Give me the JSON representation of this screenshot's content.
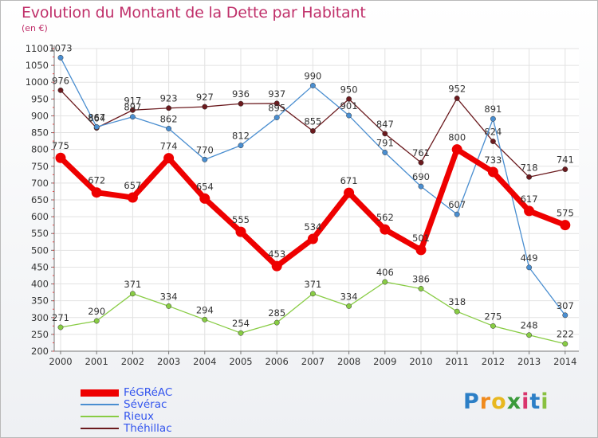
{
  "chart_data": {
    "type": "line",
    "title": "Evolution du Montant de la Dette par Habitant",
    "unit_label": "(en €)",
    "xlabel": "",
    "ylabel": "",
    "categories": [
      "2000",
      "2001",
      "2002",
      "2003",
      "2004",
      "2005",
      "2006",
      "2007",
      "2008",
      "2009",
      "2010",
      "2011",
      "2012",
      "2013",
      "2014"
    ],
    "ylim": [
      200,
      1100
    ],
    "yticks": [
      200,
      250,
      300,
      350,
      400,
      450,
      500,
      550,
      600,
      650,
      700,
      750,
      800,
      850,
      900,
      950,
      1000,
      1050,
      1100
    ],
    "legend_position": "bottom-left",
    "series": [
      {
        "name": "Théhillac",
        "color": "#6b1a1e",
        "values": [
          976,
          864,
          917,
          923,
          927,
          936,
          937,
          855,
          950,
          847,
          761,
          952,
          824,
          718,
          741
        ]
      },
      {
        "name": "Sévérac",
        "color": "#4a8ed0",
        "values": [
          1073,
          867,
          897,
          862,
          770,
          812,
          895,
          990,
          901,
          791,
          690,
          607,
          891,
          449,
          307
        ]
      },
      {
        "name": "Rieux",
        "color": "#88cc44",
        "values": [
          271,
          290,
          371,
          334,
          294,
          254,
          285,
          371,
          334,
          406,
          386,
          318,
          275,
          248,
          222
        ]
      },
      {
        "name": "FéGRéAC",
        "color": "#ee0000",
        "values": [
          775,
          672,
          657,
          774,
          654,
          555,
          453,
          534,
          671,
          562,
          501,
          800,
          733,
          617,
          575
        ]
      }
    ],
    "legend": [
      {
        "name": "FéGRéAC",
        "color": "#ee0000",
        "text_color": "#3355ee"
      },
      {
        "name": "Sévérac",
        "color": "#4a8ed0",
        "text_color": "#3355ee"
      },
      {
        "name": "Rieux",
        "color": "#88cc44",
        "text_color": "#3355ee"
      },
      {
        "name": "Théhillac",
        "color": "#6b1a1e",
        "text_color": "#3355ee"
      }
    ]
  },
  "branding": {
    "logo_letters": [
      {
        "ch": "P",
        "color": "#2c7fc6"
      },
      {
        "ch": "r",
        "color": "#f08a1c"
      },
      {
        "ch": "o",
        "color": "#e8b820"
      },
      {
        "ch": "x",
        "color": "#3a9a3a"
      },
      {
        "ch": "i",
        "color": "#d9346c"
      },
      {
        "ch": "t",
        "color": "#2c7fc6"
      },
      {
        "ch": "i",
        "color": "#88c040"
      }
    ]
  }
}
